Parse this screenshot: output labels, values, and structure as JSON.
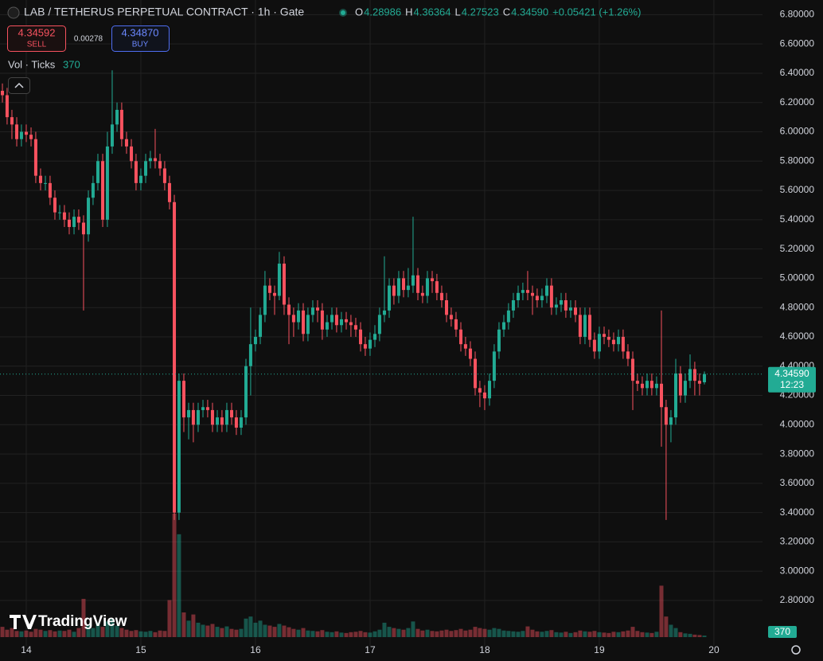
{
  "header": {
    "title": "LAB / TETHERUS PERPETUAL CONTRACT · 1h · Gate",
    "ohlc": [
      {
        "key": "O",
        "value": "4.28986"
      },
      {
        "key": "H",
        "value": "4.36364"
      },
      {
        "key": "L",
        "value": "4.27523"
      },
      {
        "key": "C",
        "value": "4.34590"
      }
    ],
    "change": "+0.05421 (+1.26%)"
  },
  "trade": {
    "sell_price": "4.34592",
    "sell_label": "SELL",
    "spread": "0.00278",
    "buy_price": "4.34870",
    "buy_label": "BUY"
  },
  "watermark": "TradingView",
  "chart_data": {
    "type": "candlestick",
    "volume_label": "Vol · Ticks",
    "x": [
      13.792,
      13.833,
      13.875,
      13.917,
      13.958,
      14,
      14.042,
      14.083,
      14.125,
      14.167,
      14.208,
      14.25,
      14.292,
      14.333,
      14.375,
      14.417,
      14.458,
      14.5,
      14.542,
      14.583,
      14.625,
      14.667,
      14.708,
      14.75,
      14.792,
      14.833,
      14.875,
      14.917,
      14.958,
      15,
      15.042,
      15.083,
      15.125,
      15.167,
      15.208,
      15.25,
      15.292,
      15.333,
      15.375,
      15.417,
      15.458,
      15.5,
      15.542,
      15.583,
      15.625,
      15.667,
      15.708,
      15.75,
      15.792,
      15.833,
      15.875,
      15.917,
      15.958,
      16,
      16.042,
      16.083,
      16.125,
      16.167,
      16.208,
      16.25,
      16.292,
      16.333,
      16.375,
      16.417,
      16.458,
      16.5,
      16.542,
      16.583,
      16.625,
      16.667,
      16.708,
      16.75,
      16.792,
      16.833,
      16.875,
      16.917,
      16.958,
      17,
      17.042,
      17.083,
      17.125,
      17.167,
      17.208,
      17.25,
      17.292,
      17.333,
      17.375,
      17.417,
      17.458,
      17.5,
      17.542,
      17.583,
      17.625,
      17.667,
      17.708,
      17.75,
      17.792,
      17.833,
      17.875,
      17.917,
      17.958,
      18,
      18.042,
      18.083,
      18.125,
      18.167,
      18.208,
      18.25,
      18.292,
      18.333,
      18.375,
      18.417,
      18.458,
      18.5,
      18.542,
      18.583,
      18.625,
      18.667,
      18.708,
      18.75,
      18.792,
      18.833,
      18.875,
      18.917,
      18.958,
      19,
      19.042,
      19.083,
      19.125,
      19.167,
      19.208,
      19.25,
      19.292,
      19.333,
      19.375,
      19.417,
      19.458,
      19.5,
      19.542,
      19.583,
      19.625,
      19.667,
      19.708,
      19.75,
      19.792,
      19.833,
      19.875,
      19.917
    ],
    "open": [
      6.28,
      6.25,
      6.1,
      6.05,
      5.95,
      6,
      5.98,
      5.95,
      5.7,
      5.65,
      5.65,
      5.55,
      5.45,
      5.45,
      5.4,
      5.35,
      5.42,
      5.38,
      5.3,
      5.55,
      5.65,
      5.8,
      5.4,
      5.9,
      6.05,
      6.15,
      5.95,
      5.9,
      5.8,
      5.65,
      5.7,
      5.8,
      5.82,
      5.8,
      5.75,
      5.65,
      5.52,
      3.4,
      4.3,
      4.05,
      4.1,
      4,
      4.1,
      4.12,
      4.1,
      4,
      4.05,
      4,
      4.1,
      4.05,
      3.98,
      4.05,
      4.4,
      4.55,
      4.6,
      4.75,
      4.95,
      4.9,
      4.88,
      5.1,
      4.82,
      4.75,
      4.7,
      4.78,
      4.62,
      4.75,
      4.8,
      4.78,
      4.65,
      4.7,
      4.75,
      4.68,
      4.72,
      4.7,
      4.68,
      4.65,
      4.55,
      4.52,
      4.58,
      4.62,
      4.75,
      4.78,
      4.95,
      4.88,
      5,
      4.92,
      4.95,
      5.02,
      4.9,
      4.88,
      5,
      4.98,
      4.9,
      4.85,
      4.75,
      4.72,
      4.65,
      4.55,
      4.52,
      4.45,
      4.25,
      4.22,
      4.18,
      4.3,
      4.5,
      4.65,
      4.7,
      4.78,
      4.85,
      4.9,
      4.92,
      4.9,
      4.88,
      4.85,
      4.88,
      4.95,
      4.8,
      4.82,
      4.85,
      4.78,
      4.8,
      4.75,
      4.6,
      4.75,
      4.58,
      4.5,
      4.62,
      4.6,
      4.58,
      4.55,
      4.6,
      4.5,
      4.45,
      4.3,
      4.28,
      4.25,
      4.3,
      4.25,
      4.28,
      4.12,
      4,
      4.05,
      4.35,
      4.2,
      4.3,
      4.38,
      4.3,
      4.28986
    ],
    "high": [
      6.33,
      6.3,
      6.15,
      6.1,
      6.05,
      6.05,
      6.03,
      6,
      5.75,
      5.7,
      5.7,
      5.6,
      5.5,
      5.5,
      5.45,
      5.47,
      5.47,
      5.43,
      5.6,
      5.7,
      5.85,
      5.85,
      6,
      6.42,
      6.2,
      6.2,
      6,
      5.95,
      5.85,
      5.75,
      5.85,
      5.87,
      6.02,
      5.85,
      5.8,
      5.7,
      5.57,
      4.35,
      4.35,
      4.15,
      4.15,
      4.15,
      4.17,
      4.17,
      4.15,
      4.1,
      4.1,
      4.15,
      4.15,
      4.1,
      4.1,
      4.45,
      4.8,
      4.65,
      4.8,
      5.05,
      5,
      4.95,
      5.18,
      5.15,
      4.87,
      4.8,
      4.83,
      4.83,
      4.8,
      4.85,
      4.85,
      4.83,
      4.75,
      4.8,
      4.8,
      4.77,
      4.77,
      4.75,
      4.73,
      4.7,
      4.6,
      4.63,
      4.68,
      4.8,
      5.15,
      5,
      5,
      5.05,
      5.05,
      5.07,
      5.42,
      5.07,
      4.95,
      5.05,
      5.05,
      5.03,
      4.95,
      4.9,
      4.8,
      4.77,
      4.7,
      4.6,
      4.57,
      4.5,
      4.3,
      4.27,
      4.35,
      4.55,
      4.7,
      4.75,
      4.83,
      4.9,
      4.95,
      4.97,
      5.05,
      4.95,
      4.93,
      4.93,
      5,
      5,
      4.87,
      4.9,
      4.9,
      4.85,
      4.85,
      4.8,
      4.8,
      4.8,
      4.63,
      4.67,
      4.67,
      4.65,
      4.63,
      4.65,
      4.65,
      4.55,
      4.5,
      4.35,
      4.33,
      4.35,
      4.35,
      4.33,
      4.78,
      4.17,
      4.1,
      4.45,
      4.4,
      4.35,
      4.48,
      4.43,
      4.35,
      4.36364
    ],
    "low": [
      6.2,
      6.05,
      5.95,
      5.9,
      5.9,
      5.93,
      5.9,
      5.65,
      5.6,
      5.6,
      5.5,
      5.4,
      5.4,
      5.35,
      5.3,
      5.3,
      5.33,
      4.78,
      5.25,
      5.5,
      5.6,
      5.35,
      5.35,
      5.85,
      6,
      5.9,
      5.85,
      5.75,
      5.6,
      5.6,
      5.65,
      5.75,
      5.75,
      5.7,
      5.6,
      5.47,
      3.35,
      3.35,
      3.95,
      3.9,
      3.88,
      3.95,
      4.05,
      4.05,
      3.95,
      3.95,
      3.95,
      3.95,
      4,
      3.93,
      3.93,
      4,
      4.2,
      4.5,
      4.55,
      4.7,
      4.85,
      4.75,
      4.85,
      4.75,
      4.55,
      4.6,
      4.65,
      4.57,
      4.57,
      4.7,
      4.7,
      4.58,
      4.6,
      4.65,
      4.63,
      4.63,
      4.65,
      4.6,
      4.6,
      4.5,
      4.47,
      4.47,
      4.53,
      4.57,
      4.7,
      4.73,
      4.82,
      4.83,
      4.87,
      4.87,
      4.9,
      4.85,
      4.83,
      4.83,
      4.9,
      4.85,
      4.8,
      4.7,
      4.67,
      4.6,
      4.5,
      4.47,
      4.4,
      4.2,
      4.12,
      4.1,
      4.13,
      4.25,
      4.45,
      4.6,
      4.65,
      4.73,
      4.8,
      4.85,
      4.85,
      4.75,
      4.8,
      4.8,
      4.83,
      4.75,
      4.75,
      4.77,
      4.73,
      4.73,
      4.7,
      4.55,
      4.55,
      4.53,
      4.45,
      4.45,
      4.55,
      4.53,
      4.5,
      4.5,
      4.45,
      4.4,
      4.1,
      4.23,
      4.2,
      4.2,
      4.2,
      4.2,
      3.85,
      3.35,
      3.88,
      4,
      4.15,
      4.15,
      4.25,
      4.2,
      4.2,
      4.27523
    ],
    "close": [
      6.25,
      6.1,
      6.05,
      5.95,
      6,
      5.98,
      5.95,
      5.7,
      5.65,
      5.65,
      5.55,
      5.45,
      5.45,
      5.4,
      5.35,
      5.42,
      5.38,
      5.3,
      5.55,
      5.65,
      5.8,
      5.4,
      5.9,
      6.05,
      6.15,
      5.95,
      5.9,
      5.8,
      5.65,
      5.7,
      5.8,
      5.82,
      5.8,
      5.75,
      5.65,
      5.52,
      3.4,
      4.3,
      4.05,
      4.1,
      4,
      4.1,
      4.12,
      4.1,
      4,
      4.05,
      4,
      4.1,
      4.05,
      3.98,
      4.05,
      4.4,
      4.55,
      4.6,
      4.75,
      4.95,
      4.9,
      4.88,
      5.1,
      4.82,
      4.75,
      4.7,
      4.78,
      4.62,
      4.75,
      4.8,
      4.78,
      4.65,
      4.7,
      4.75,
      4.68,
      4.72,
      4.7,
      4.68,
      4.65,
      4.55,
      4.52,
      4.58,
      4.62,
      4.75,
      4.78,
      4.95,
      4.88,
      5,
      4.92,
      4.95,
      5.02,
      4.9,
      4.88,
      5,
      4.98,
      4.9,
      4.85,
      4.75,
      4.72,
      4.65,
      4.55,
      4.52,
      4.45,
      4.25,
      4.22,
      4.18,
      4.3,
      4.5,
      4.65,
      4.7,
      4.78,
      4.85,
      4.9,
      4.92,
      4.9,
      4.88,
      4.85,
      4.88,
      4.95,
      4.8,
      4.82,
      4.85,
      4.78,
      4.8,
      4.75,
      4.6,
      4.75,
      4.58,
      4.5,
      4.62,
      4.6,
      4.58,
      4.55,
      4.6,
      4.5,
      4.45,
      4.3,
      4.28,
      4.25,
      4.3,
      4.25,
      4.28,
      4.12,
      4,
      4.05,
      4.35,
      4.2,
      4.3,
      4.38,
      4.3,
      4.28,
      4.3459
    ],
    "volume": [
      2500,
      1800,
      2200,
      1500,
      1400,
      1600,
      1300,
      2000,
      1800,
      1500,
      1700,
      1400,
      1600,
      1500,
      1800,
      1300,
      2200,
      9300,
      3000,
      2200,
      3500,
      2500,
      3800,
      4500,
      2800,
      2200,
      1800,
      1500,
      1700,
      1400,
      1300,
      1500,
      1200,
      1600,
      1500,
      9000,
      30000,
      25000,
      6000,
      4000,
      5500,
      3500,
      3000,
      2800,
      3200,
      2500,
      2200,
      2600,
      2000,
      1800,
      2000,
      4500,
      5000,
      3500,
      4000,
      3000,
      2800,
      2500,
      3200,
      2800,
      2400,
      2000,
      1800,
      2200,
      1600,
      1500,
      1400,
      1700,
      1300,
      1200,
      1400,
      1100,
      1000,
      1200,
      1300,
      1500,
      1200,
      1100,
      1400,
      1800,
      3500,
      2500,
      2200,
      2000,
      1800,
      2200,
      3800,
      2000,
      1600,
      1800,
      1500,
      1400,
      1600,
      1800,
      1500,
      1700,
      2000,
      1600,
      1800,
      2500,
      2200,
      2000,
      1800,
      2200,
      2000,
      1600,
      1500,
      1400,
      1300,
      1500,
      2600,
      1800,
      1400,
      1300,
      1500,
      1700,
      1200,
      1100,
      1300,
      1000,
      1200,
      1600,
      1400,
      1300,
      1500,
      1200,
      1100,
      1000,
      1300,
      1200,
      1400,
      1600,
      2500,
      1500,
      1200,
      1100,
      1000,
      1300,
      12500,
      5000,
      3000,
      2200,
      1200,
      900,
      800,
      600,
      500,
      370
    ],
    "up_color": "#22ab94",
    "down_color": "#f7525f",
    "xlim": [
      13.771,
      20.424
    ],
    "xticks": [
      14,
      15,
      16,
      17,
      18,
      19,
      20
    ],
    "ylim": [
      2.49,
      6.9
    ],
    "yticks": [
      {
        "value": 2.8,
        "label": "2.80000"
      },
      {
        "value": 3.0,
        "label": "3.00000"
      },
      {
        "value": 3.2,
        "label": "3.20000"
      },
      {
        "value": 3.4,
        "label": "3.40000"
      },
      {
        "value": 3.6,
        "label": "3.60000"
      },
      {
        "value": 3.8,
        "label": "3.80000"
      },
      {
        "value": 4.0,
        "label": "4.00000"
      },
      {
        "value": 4.2,
        "label": "4.20000"
      },
      {
        "value": 4.4,
        "label": "4.40000"
      },
      {
        "value": 4.6,
        "label": "4.60000"
      },
      {
        "value": 4.8,
        "label": "4.80000"
      },
      {
        "value": 5.0,
        "label": "5.00000"
      },
      {
        "value": 5.2,
        "label": "5.20000"
      },
      {
        "value": 5.4,
        "label": "5.40000"
      },
      {
        "value": 5.6,
        "label": "5.60000"
      },
      {
        "value": 5.8,
        "label": "5.80000"
      },
      {
        "value": 6.0,
        "label": "6.00000"
      },
      {
        "value": 6.2,
        "label": "6.20000"
      },
      {
        "value": 6.4,
        "label": "6.40000"
      },
      {
        "value": 6.6,
        "label": "6.60000"
      },
      {
        "value": 6.8,
        "label": "6.80000"
      }
    ],
    "grid": true,
    "last_price": {
      "label": "4.34590",
      "countdown": "12:23"
    }
  }
}
